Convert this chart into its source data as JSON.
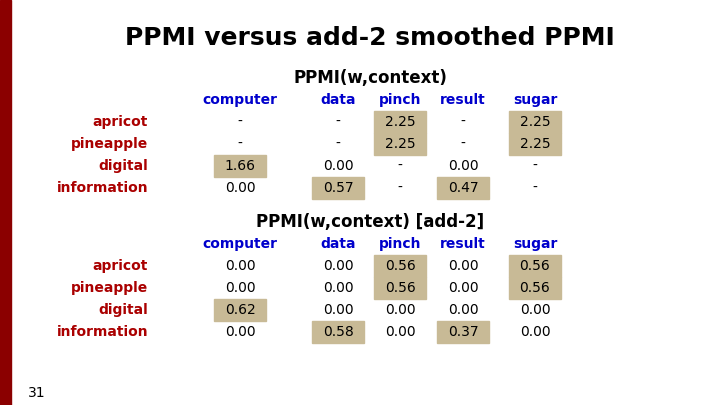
{
  "title": "PPMI versus add-2 smoothed PPMI",
  "title_fontsize": 18,
  "title_fontweight": "bold",
  "bg_color": "#ffffff",
  "slide_number": "31",
  "left_bar_color": "#8b0000",
  "table1_header": "PPMI(w,context)",
  "table2_header": "PPMI(w,context) [add-2]",
  "col_headers": [
    "computer",
    "data",
    "pinch",
    "result",
    "sugar"
  ],
  "col_header_color": "#0000cc",
  "row_headers": [
    "apricot",
    "pineapple",
    "digital",
    "information"
  ],
  "row_header_color": "#aa0000",
  "table1_data": [
    [
      "-",
      "-",
      "2.25",
      "-",
      "2.25"
    ],
    [
      "-",
      "-",
      "2.25",
      "-",
      "2.25"
    ],
    [
      "1.66",
      "0.00",
      "-",
      "0.00",
      "-"
    ],
    [
      "0.00",
      "0.57",
      "-",
      "0.47",
      "-"
    ]
  ],
  "table2_data": [
    [
      "0.00",
      "0.00",
      "0.56",
      "0.00",
      "0.56"
    ],
    [
      "0.00",
      "0.00",
      "0.56",
      "0.00",
      "0.56"
    ],
    [
      "0.62",
      "0.00",
      "0.00",
      "0.00",
      "0.00"
    ],
    [
      "0.00",
      "0.58",
      "0.00",
      "0.37",
      "0.00"
    ]
  ],
  "highlight_color": "#c8ba96",
  "text_color": "#000000",
  "table1_highlights": [
    [
      false,
      false,
      true,
      false,
      true
    ],
    [
      false,
      false,
      true,
      false,
      true
    ],
    [
      true,
      false,
      false,
      false,
      false
    ],
    [
      false,
      true,
      false,
      true,
      false
    ]
  ],
  "table2_highlights": [
    [
      false,
      false,
      true,
      false,
      true
    ],
    [
      false,
      false,
      true,
      false,
      true
    ],
    [
      true,
      false,
      false,
      false,
      false
    ],
    [
      false,
      true,
      false,
      true,
      false
    ]
  ],
  "fig_width": 7.2,
  "fig_height": 4.05,
  "dpi": 100
}
